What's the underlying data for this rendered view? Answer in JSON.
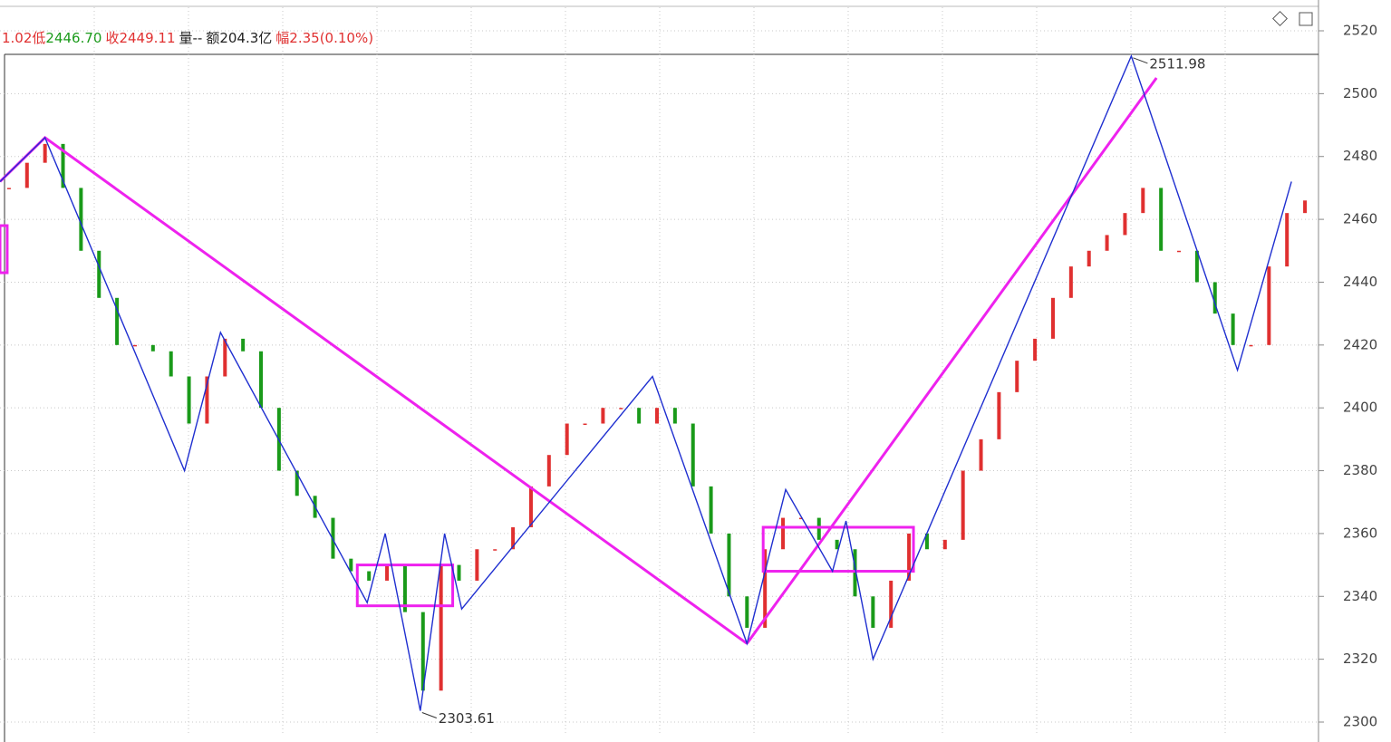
{
  "header": {
    "parts": [
      {
        "text": "1.02",
        "color": "#e03030"
      },
      {
        "text": "低",
        "color": "#e03030"
      },
      {
        "text": "2446.70",
        "color": "#1a9a1a"
      },
      {
        "text": "收",
        "color": "#e03030"
      },
      {
        "text": "2449.11",
        "color": "#e03030"
      },
      {
        "text": "量--",
        "color": "#222222"
      },
      {
        "text": "额204.3亿",
        "color": "#222222"
      },
      {
        "text": "幅",
        "color": "#e03030"
      },
      {
        "text": "2.35(0.10%)",
        "color": "#e03030"
      }
    ]
  },
  "chart_data": {
    "type": "candlestick",
    "xlim": [
      -0.5,
      72.5
    ],
    "ylim": [
      2296.25,
      2527.5
    ],
    "yticks": [
      2300,
      2320,
      2340,
      2360,
      2380,
      2400,
      2420,
      2440,
      2460,
      2480,
      2500,
      2520
    ],
    "grid": true,
    "up_color": "#e03030",
    "down_color": "#1a9a1a",
    "close": [
      2470,
      2478,
      2484,
      2470,
      2450,
      2435,
      2420,
      2420,
      2418,
      2410,
      2395,
      2410,
      2422,
      2418,
      2400,
      2380,
      2372,
      2365,
      2352,
      2348,
      2345,
      2350,
      2335,
      2310,
      2350,
      2345,
      2355,
      2355,
      2362,
      2375,
      2385,
      2395,
      2395,
      2400,
      2400,
      2395,
      2400,
      2395,
      2375,
      2360,
      2340,
      2330,
      2355,
      2365,
      2365,
      2358,
      2355,
      2340,
      2330,
      2345,
      2360,
      2355,
      2358,
      2380,
      2390,
      2405,
      2415,
      2422,
      2435,
      2445,
      2450,
      2455,
      2462,
      2470,
      2450,
      2450,
      2440,
      2430,
      2420,
      2420,
      2445,
      2462,
      2466
    ],
    "zigzag": {
      "color": "#1f2fd0",
      "x": [
        -0.5,
        2,
        9.75,
        11.75,
        19.9,
        20.9,
        22.85,
        24.2,
        25.15,
        35.75,
        41,
        43.15,
        45.75,
        46.5,
        48,
        62.35,
        68.25,
        71.25
      ],
      "values": [
        2472,
        2486,
        2380,
        2424,
        2338,
        2360,
        2303.61,
        2360,
        2336,
        2410,
        2325,
        2374,
        2348,
        2364,
        2320,
        2511.98,
        2412,
        2472
      ]
    },
    "trend_lines": {
      "color": "#ee22ee",
      "lines": [
        {
          "x": [
            -0.5,
            2,
            41
          ],
          "values": [
            2472,
            2486,
            2325
          ]
        },
        {
          "x": [
            41,
            63.75
          ],
          "values": [
            2325,
            2505
          ]
        }
      ]
    },
    "boxes": {
      "color": "#ee22ee",
      "items": [
        {
          "x": [
            -0.5,
            -0.1
          ],
          "values": [
            2443,
            2458
          ]
        },
        {
          "x": [
            19.35,
            24.65
          ],
          "values": [
            2337,
            2350
          ]
        },
        {
          "x": [
            41.9,
            50.25
          ],
          "values": [
            2348,
            2362
          ]
        }
      ]
    },
    "annotations": [
      {
        "text": "2511.98",
        "x": 62.35,
        "value": 2511.98
      },
      {
        "text": "2303.61",
        "x": 22.85,
        "value": 2303.61
      }
    ]
  }
}
